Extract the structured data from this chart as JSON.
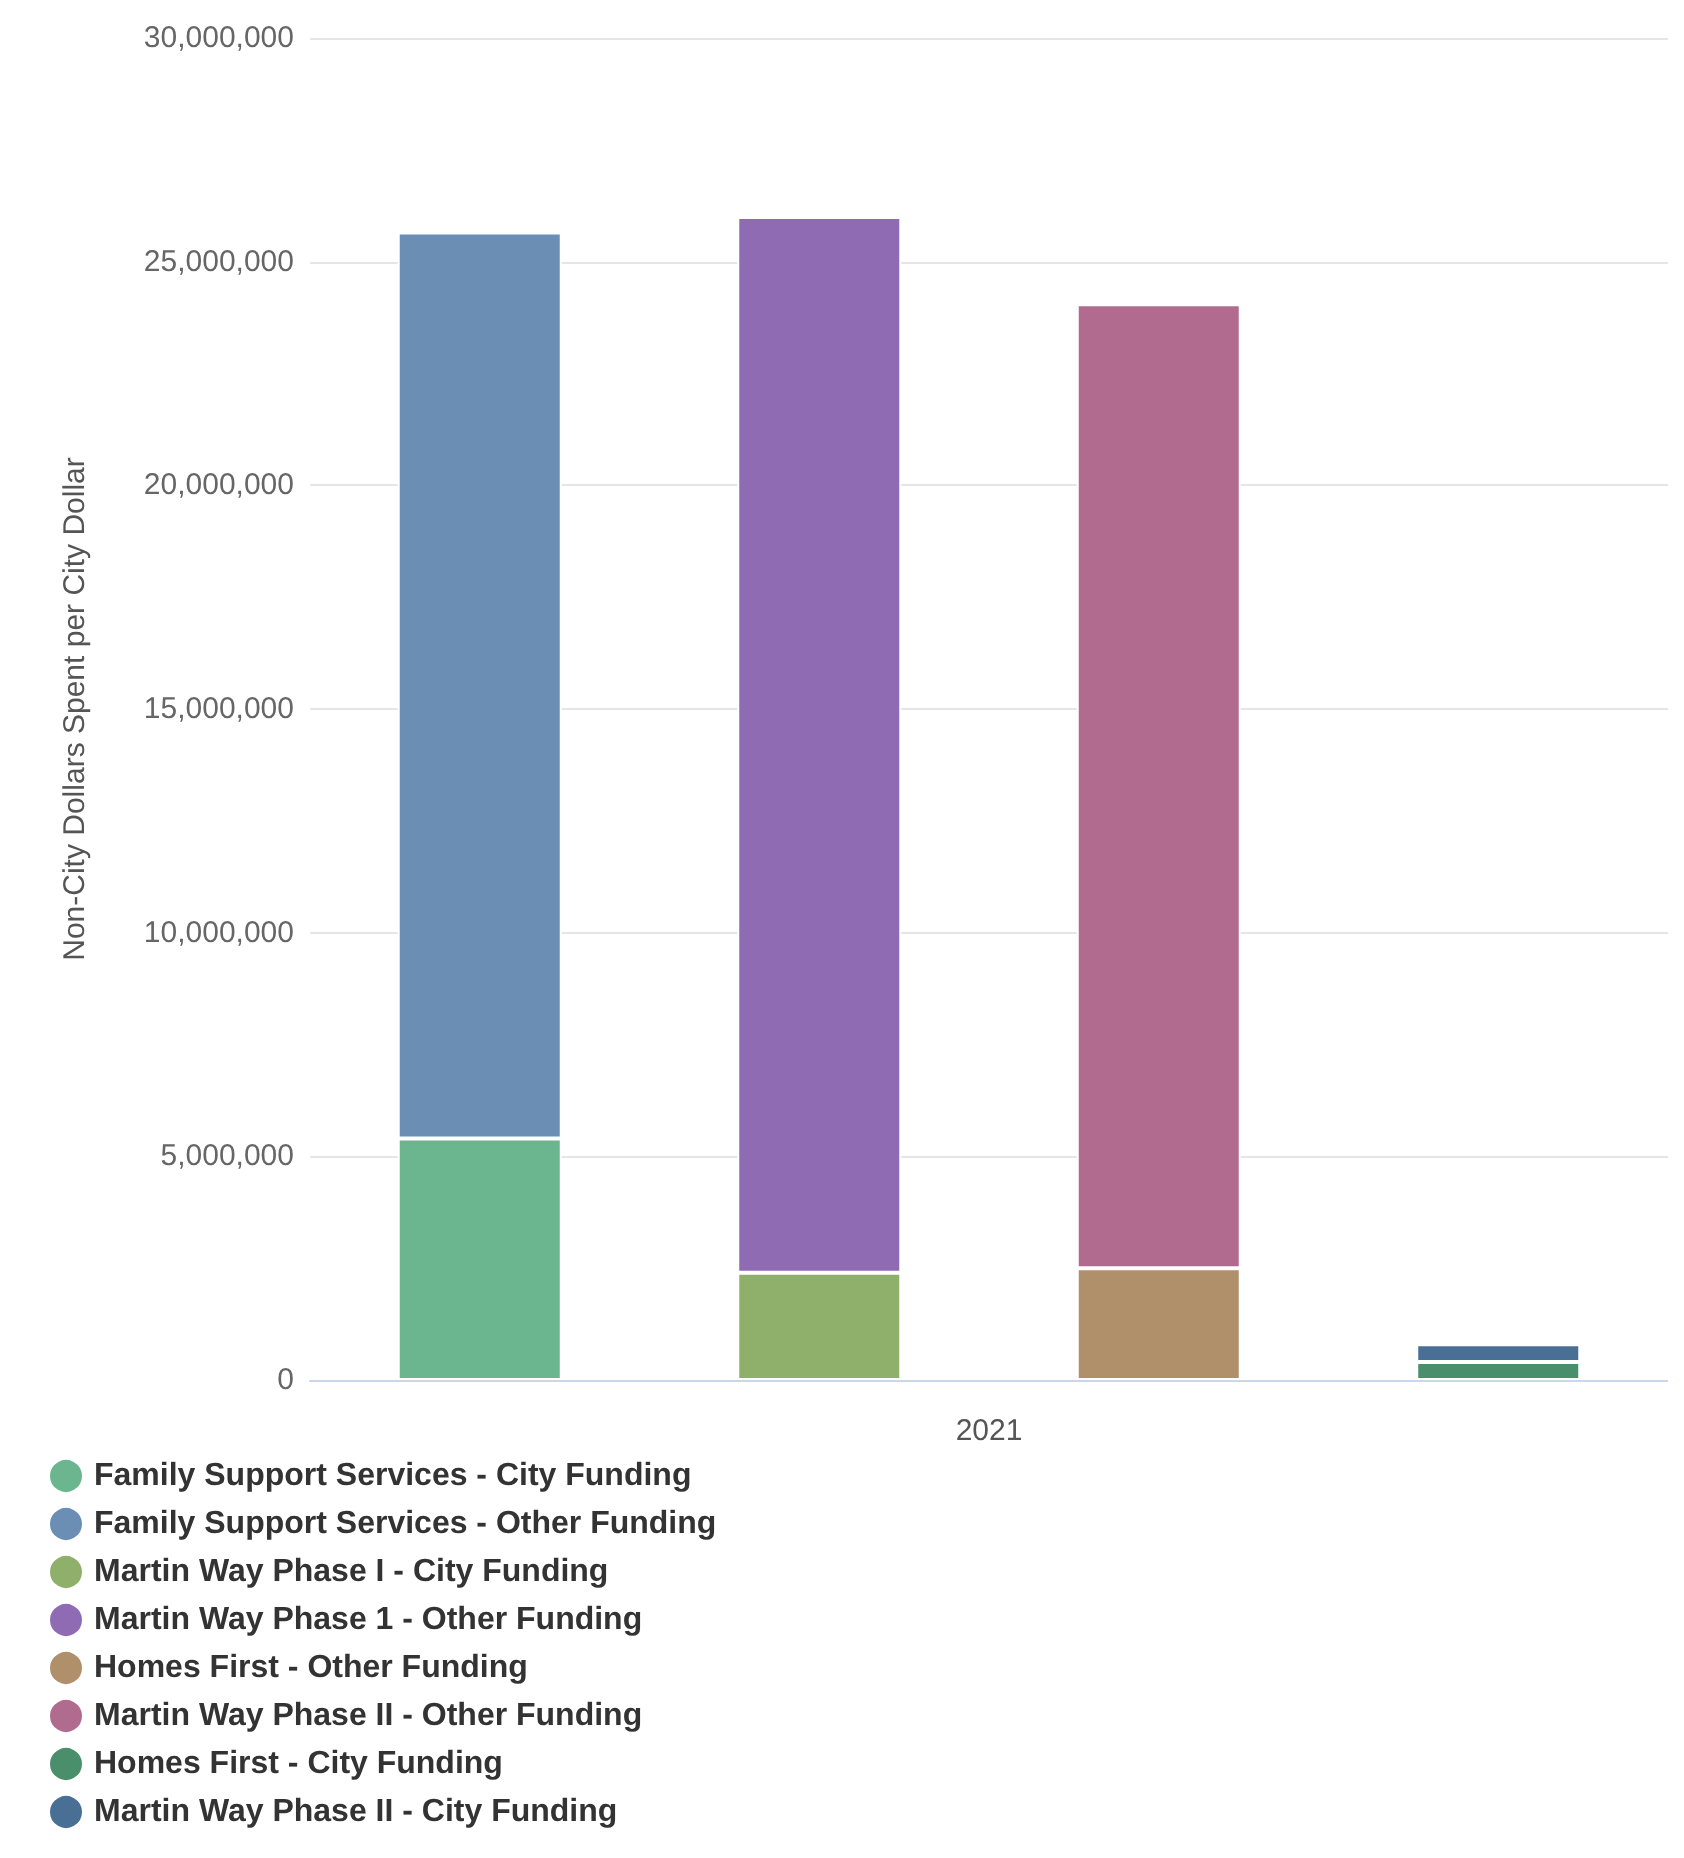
{
  "chart_data": {
    "type": "bar",
    "stacked": true,
    "categories": [
      null,
      null,
      null,
      null
    ],
    "xlabel": "2021",
    "ylabel": "Non-City Dollars Spent per City Dollar",
    "ylim": [
      0,
      30000000
    ],
    "yticks": [
      0,
      {
        "value": 5000000,
        "label": "5,000,000"
      },
      {
        "value": 10000000,
        "label": "10,000,000"
      },
      {
        "value": 15000000,
        "label": "15,000,000"
      },
      {
        "value": 20000000,
        "label": "20,000,000"
      },
      {
        "value": 25000000,
        "label": "25,000,000"
      },
      {
        "value": 30000000,
        "label": "30,000,000"
      }
    ],
    "grid": "y",
    "legend": "bottom left",
    "series": [
      {
        "name": "Family Support Services - City Funding",
        "color": "#6bb58f",
        "values": [
          5400000,
          null,
          null,
          null
        ]
      },
      {
        "name": "Family Support Services - Other Funding",
        "color": "#6b8fb4",
        "values": [
          20250000,
          null,
          null,
          null
        ]
      },
      {
        "name": "Martin Way Phase I - City Funding",
        "color": "#8fb06b",
        "values": [
          null,
          2400000,
          null,
          null
        ]
      },
      {
        "name": "Martin Way Phase 1 - Other Funding",
        "color": "#8f6bb4",
        "values": [
          null,
          23600000,
          null,
          null
        ]
      },
      {
        "name": "Homes First - Other Funding",
        "color": "#b08f6b",
        "values": [
          null,
          null,
          2500000,
          null
        ]
      },
      {
        "name": "Martin Way Phase II - Other Funding",
        "color": "#b06b8f",
        "values": [
          null,
          null,
          21550000,
          null
        ]
      },
      {
        "name": "Homes First - City Funding",
        "color": "#4a8f6b",
        "values": [
          null,
          null,
          null,
          400000
        ]
      },
      {
        "name": "Martin Way Phase II - City Funding",
        "color": "#4a6f94",
        "values": [
          null,
          null,
          null,
          400000
        ]
      }
    ]
  }
}
